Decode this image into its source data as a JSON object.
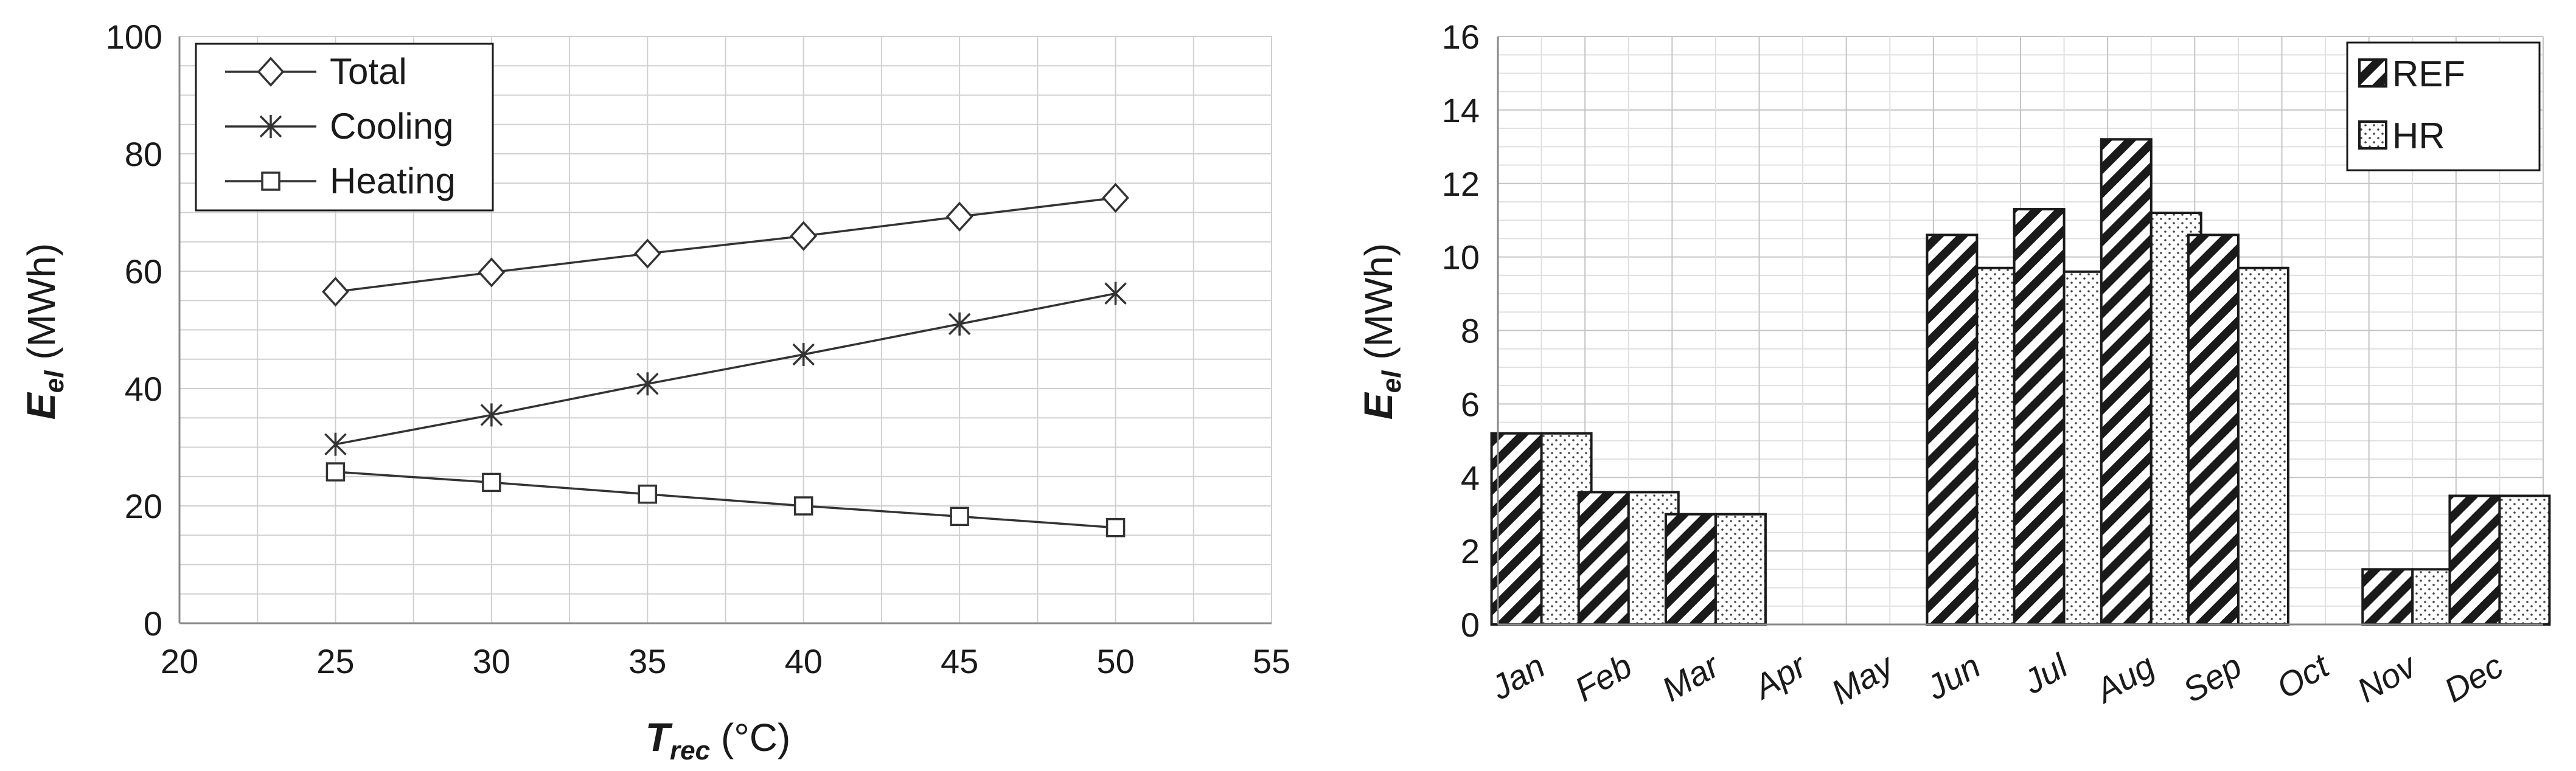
{
  "chart_data": [
    {
      "type": "line",
      "x": [
        25,
        30,
        35,
        40,
        45,
        50
      ],
      "series": [
        {
          "name": "Total",
          "marker": "diamond",
          "values": [
            56.5,
            59.8,
            63.0,
            66.0,
            69.3,
            72.5
          ]
        },
        {
          "name": "Cooling",
          "marker": "asterisk",
          "values": [
            30.5,
            35.5,
            40.8,
            45.8,
            51.0,
            56.2
          ]
        },
        {
          "name": "Heating",
          "marker": "square",
          "values": [
            25.8,
            24.0,
            22.0,
            20.0,
            18.2,
            16.3
          ]
        }
      ],
      "xlim": [
        20,
        55
      ],
      "ylim": [
        0,
        100
      ],
      "xticks": [
        20,
        25,
        30,
        35,
        40,
        45,
        50,
        55
      ],
      "yticks": [
        0,
        20,
        40,
        60,
        80,
        100
      ],
      "ylabel_main": "E",
      "ylabel_sub": "el",
      "ylabel_unit": " (MWh)",
      "xlabel_main": "T",
      "xlabel_sub": "rec",
      "xlabel_unit": " (°C)",
      "grid": true,
      "legend_position": "top-left"
    },
    {
      "type": "bar",
      "categories": [
        "Jan",
        "Feb",
        "Mar",
        "Apr",
        "May",
        "Jun",
        "Jul",
        "Aug",
        "Sep",
        "Oct",
        "Nov",
        "Dec"
      ],
      "series": [
        {
          "name": "REF",
          "pattern": "hatch",
          "values": [
            5.2,
            3.6,
            3.0,
            0,
            0,
            10.6,
            11.3,
            13.2,
            10.6,
            0,
            1.5,
            3.5
          ]
        },
        {
          "name": "HR",
          "pattern": "dots",
          "values": [
            5.2,
            3.6,
            3.0,
            0,
            0,
            9.7,
            9.6,
            11.2,
            9.7,
            0,
            1.5,
            3.5
          ]
        }
      ],
      "ylim": [
        0,
        16
      ],
      "yticks": [
        0,
        2,
        4,
        6,
        8,
        10,
        12,
        14,
        16
      ],
      "ylabel_main": "E",
      "ylabel_sub": "el",
      "ylabel_unit": " (MWh)",
      "grid": true,
      "legend_position": "top-right"
    }
  ]
}
